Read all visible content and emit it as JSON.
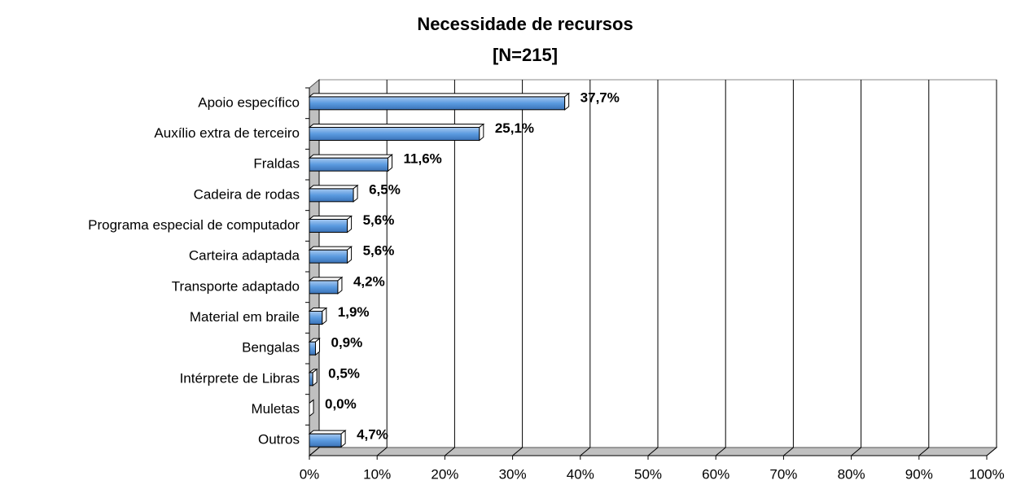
{
  "chart_data": {
    "type": "bar",
    "orientation": "horizontal",
    "title": "Necessidade de recursos",
    "subtitle": "[N=215]",
    "categories": [
      "Apoio específico",
      "Auxílio extra de terceiro",
      "Fraldas",
      "Cadeira de rodas",
      "Programa especial de computador",
      "Carteira adaptada",
      "Transporte adaptado",
      "Material em braile",
      "Bengalas",
      "Intérprete de Libras",
      "Muletas",
      "Outros"
    ],
    "values": [
      37.7,
      25.1,
      11.6,
      6.5,
      5.6,
      5.6,
      4.2,
      1.9,
      0.9,
      0.5,
      0.0,
      4.7
    ],
    "value_labels": [
      "37,7%",
      "25,1%",
      "11,6%",
      "6,5%",
      "5,6%",
      "5,6%",
      "4,2%",
      "1,9%",
      "0,9%",
      "0,5%",
      "0,0%",
      "4,7%"
    ],
    "color": "#5b9be0",
    "xlim": [
      0,
      100
    ],
    "xticks": [
      {
        "value": 0,
        "label": "0%"
      },
      {
        "value": 10,
        "label": "10%"
      },
      {
        "value": 20,
        "label": "20%"
      },
      {
        "value": 30,
        "label": "30%"
      },
      {
        "value": 40,
        "label": "40%"
      },
      {
        "value": 50,
        "label": "50%"
      },
      {
        "value": 60,
        "label": "60%"
      },
      {
        "value": 70,
        "label": "70%"
      },
      {
        "value": 80,
        "label": "80%"
      },
      {
        "value": 90,
        "label": "90%"
      },
      {
        "value": 100,
        "label": "100%"
      }
    ],
    "grid": true
  }
}
